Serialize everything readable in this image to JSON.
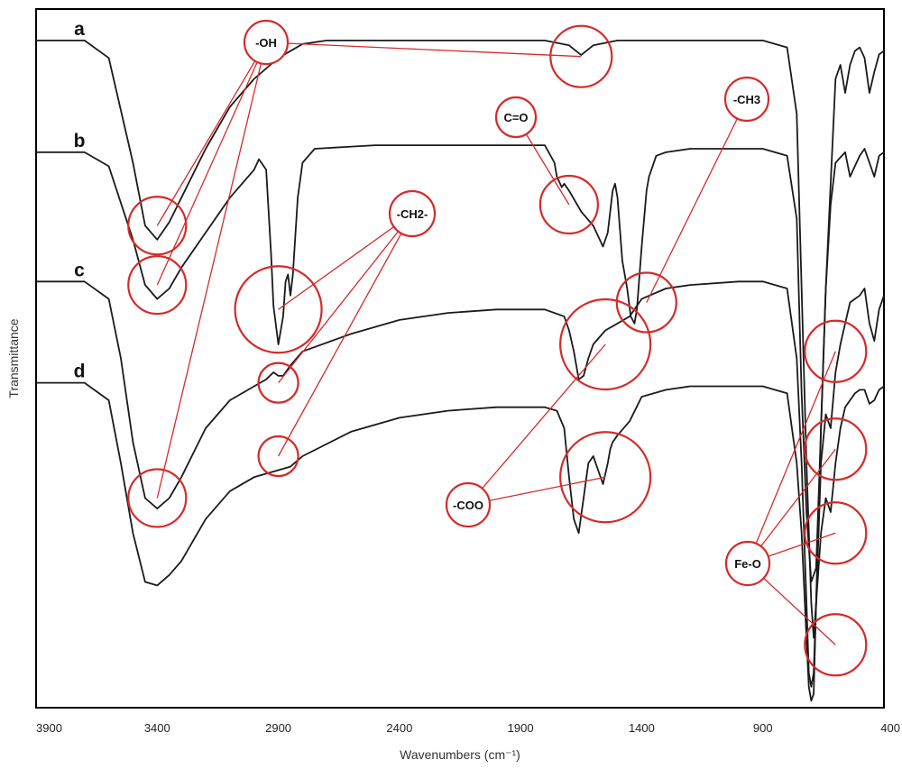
{
  "chart_data": {
    "type": "line",
    "title": "",
    "xlabel": "Wavenumbers (cm⁻¹)",
    "ylabel": "Transmittance",
    "xlim": [
      3900,
      400
    ],
    "x_reversed": true,
    "ylim": [
      0,
      100
    ],
    "x_ticks": [
      "3900",
      "3400",
      "2900",
      "2400",
      "1900",
      "1400",
      "900",
      "400"
    ],
    "grid": false,
    "line_color": "#1a1a1a",
    "annotation_color": "#d42b2b",
    "series": [
      {
        "name": "a",
        "points": [
          [
            3900,
            95.5
          ],
          [
            3700,
            95.5
          ],
          [
            3600,
            93
          ],
          [
            3500,
            78
          ],
          [
            3450,
            69
          ],
          [
            3400,
            67
          ],
          [
            3350,
            69.5
          ],
          [
            3300,
            73
          ],
          [
            3200,
            80
          ],
          [
            3100,
            86
          ],
          [
            3000,
            90
          ],
          [
            2900,
            93
          ],
          [
            2800,
            95
          ],
          [
            2700,
            95.5
          ],
          [
            2000,
            95.5
          ],
          [
            1800,
            95.5
          ],
          [
            1700,
            94.8
          ],
          [
            1650,
            93.4
          ],
          [
            1600,
            94.8
          ],
          [
            1500,
            95.5
          ],
          [
            900,
            95.5
          ],
          [
            800,
            94.5
          ],
          [
            760,
            85
          ],
          [
            740,
            60
          ],
          [
            720,
            35
          ],
          [
            700,
            15
          ],
          [
            690,
            10
          ],
          [
            680,
            15
          ],
          [
            660,
            40
          ],
          [
            640,
            60
          ],
          [
            620,
            75
          ],
          [
            600,
            90
          ],
          [
            580,
            92
          ],
          [
            560,
            88
          ],
          [
            540,
            92
          ],
          [
            520,
            94
          ],
          [
            500,
            94.5
          ],
          [
            480,
            93
          ],
          [
            460,
            88
          ],
          [
            440,
            91
          ],
          [
            420,
            93.5
          ],
          [
            400,
            94
          ]
        ]
      },
      {
        "name": "b",
        "points": [
          [
            3900,
            79.5
          ],
          [
            3700,
            79.5
          ],
          [
            3600,
            77.5
          ],
          [
            3500,
            67
          ],
          [
            3450,
            60.5
          ],
          [
            3400,
            58.5
          ],
          [
            3350,
            60
          ],
          [
            3300,
            63
          ],
          [
            3200,
            68
          ],
          [
            3100,
            73
          ],
          [
            3000,
            77
          ],
          [
            2980,
            78.5
          ],
          [
            2950,
            77
          ],
          [
            2930,
            65
          ],
          [
            2920,
            57.5
          ],
          [
            2900,
            52
          ],
          [
            2880,
            56
          ],
          [
            2870,
            61
          ],
          [
            2860,
            62
          ],
          [
            2850,
            59
          ],
          [
            2840,
            62
          ],
          [
            2820,
            73
          ],
          [
            2800,
            78
          ],
          [
            2750,
            80
          ],
          [
            2500,
            80.5
          ],
          [
            1800,
            80.5
          ],
          [
            1760,
            78
          ],
          [
            1750,
            76
          ],
          [
            1730,
            74.5
          ],
          [
            1720,
            75
          ],
          [
            1700,
            74
          ],
          [
            1650,
            71
          ],
          [
            1600,
            69
          ],
          [
            1560,
            66
          ],
          [
            1540,
            68
          ],
          [
            1520,
            74
          ],
          [
            1510,
            75
          ],
          [
            1500,
            73
          ],
          [
            1480,
            64
          ],
          [
            1460,
            60
          ],
          [
            1445,
            56
          ],
          [
            1430,
            55
          ],
          [
            1420,
            57
          ],
          [
            1400,
            66
          ],
          [
            1380,
            74
          ],
          [
            1370,
            76
          ],
          [
            1360,
            77
          ],
          [
            1340,
            79
          ],
          [
            1300,
            79.5
          ],
          [
            1200,
            80
          ],
          [
            900,
            80
          ],
          [
            800,
            79
          ],
          [
            760,
            70
          ],
          [
            740,
            45
          ],
          [
            720,
            28
          ],
          [
            700,
            18
          ],
          [
            680,
            20
          ],
          [
            660,
            40
          ],
          [
            640,
            60
          ],
          [
            620,
            72
          ],
          [
            600,
            78
          ],
          [
            560,
            79.5
          ],
          [
            540,
            76
          ],
          [
            500,
            79
          ],
          [
            480,
            80
          ],
          [
            460,
            78
          ],
          [
            440,
            76
          ],
          [
            420,
            79
          ],
          [
            400,
            79.5
          ]
        ]
      },
      {
        "name": "c",
        "points": [
          [
            3900,
            61
          ],
          [
            3700,
            61
          ],
          [
            3600,
            58.5
          ],
          [
            3550,
            50
          ],
          [
            3500,
            38
          ],
          [
            3450,
            30
          ],
          [
            3400,
            28.5
          ],
          [
            3350,
            30
          ],
          [
            3300,
            33
          ],
          [
            3200,
            40
          ],
          [
            3100,
            44
          ],
          [
            3000,
            46
          ],
          [
            2950,
            47
          ],
          [
            2920,
            48
          ],
          [
            2900,
            47.5
          ],
          [
            2880,
            47.5
          ],
          [
            2850,
            49
          ],
          [
            2800,
            51
          ],
          [
            2600,
            53.5
          ],
          [
            2400,
            55.5
          ],
          [
            2200,
            56.5
          ],
          [
            2000,
            57
          ],
          [
            1800,
            57
          ],
          [
            1720,
            56
          ],
          [
            1700,
            54
          ],
          [
            1680,
            51
          ],
          [
            1660,
            47
          ],
          [
            1640,
            47.5
          ],
          [
            1620,
            50
          ],
          [
            1600,
            52
          ],
          [
            1550,
            54
          ],
          [
            1500,
            55
          ],
          [
            1450,
            56
          ],
          [
            1400,
            58.5
          ],
          [
            1300,
            60
          ],
          [
            1200,
            60.5
          ],
          [
            1000,
            61
          ],
          [
            900,
            61
          ],
          [
            800,
            60
          ],
          [
            760,
            50
          ],
          [
            740,
            35
          ],
          [
            720,
            15
          ],
          [
            710,
            5
          ],
          [
            700,
            3
          ],
          [
            690,
            5
          ],
          [
            680,
            15
          ],
          [
            660,
            35
          ],
          [
            640,
            42
          ],
          [
            620,
            40
          ],
          [
            600,
            48
          ],
          [
            580,
            52
          ],
          [
            560,
            55
          ],
          [
            540,
            58
          ],
          [
            500,
            59
          ],
          [
            480,
            60
          ],
          [
            460,
            55
          ],
          [
            440,
            52.5
          ],
          [
            420,
            57
          ],
          [
            400,
            59
          ]
        ]
      },
      {
        "name": "d",
        "points": [
          [
            3900,
            46.5
          ],
          [
            3700,
            46.5
          ],
          [
            3600,
            44
          ],
          [
            3550,
            35
          ],
          [
            3500,
            25
          ],
          [
            3450,
            18
          ],
          [
            3400,
            17.5
          ],
          [
            3350,
            19
          ],
          [
            3300,
            21
          ],
          [
            3200,
            27
          ],
          [
            3100,
            31
          ],
          [
            3000,
            33
          ],
          [
            2900,
            34
          ],
          [
            2850,
            34.5
          ],
          [
            2800,
            36
          ],
          [
            2600,
            39.5
          ],
          [
            2400,
            41.5
          ],
          [
            2200,
            42.5
          ],
          [
            2000,
            43
          ],
          [
            1800,
            43
          ],
          [
            1750,
            42.5
          ],
          [
            1720,
            40
          ],
          [
            1700,
            33
          ],
          [
            1680,
            27
          ],
          [
            1660,
            25
          ],
          [
            1640,
            30
          ],
          [
            1620,
            35
          ],
          [
            1600,
            36
          ],
          [
            1580,
            34
          ],
          [
            1560,
            32
          ],
          [
            1540,
            35
          ],
          [
            1530,
            37
          ],
          [
            1520,
            38
          ],
          [
            1500,
            39
          ],
          [
            1450,
            41
          ],
          [
            1400,
            44.5
          ],
          [
            1300,
            45.5
          ],
          [
            1200,
            46
          ],
          [
            1000,
            46
          ],
          [
            900,
            46
          ],
          [
            800,
            45
          ],
          [
            760,
            35
          ],
          [
            740,
            25
          ],
          [
            720,
            10
          ],
          [
            710,
            3
          ],
          [
            700,
            1
          ],
          [
            690,
            2
          ],
          [
            680,
            15
          ],
          [
            660,
            25
          ],
          [
            640,
            30
          ],
          [
            620,
            28
          ],
          [
            600,
            35
          ],
          [
            580,
            40
          ],
          [
            560,
            43
          ],
          [
            540,
            44
          ],
          [
            520,
            45
          ],
          [
            500,
            45.5
          ],
          [
            480,
            45.5
          ],
          [
            460,
            43.5
          ],
          [
            440,
            44
          ],
          [
            420,
            45.5
          ],
          [
            400,
            46
          ]
        ]
      }
    ],
    "annotations": [
      {
        "label": "-OH",
        "targets": [
          [
            3400,
            69
          ],
          [
            3400,
            60.5
          ],
          [
            3400,
            30
          ],
          [
            1650,
            93.2
          ]
        ]
      },
      {
        "label": "C=O",
        "targets": [
          [
            1700,
            72
          ]
        ]
      },
      {
        "label": "-CH3",
        "targets": [
          [
            1380,
            58
          ]
        ]
      },
      {
        "label": "-CH2-",
        "targets": [
          [
            2900,
            57
          ],
          [
            2900,
            46.5
          ],
          [
            2900,
            36
          ]
        ]
      },
      {
        "label": "-COO",
        "targets": [
          [
            1550,
            52
          ],
          [
            1550,
            33
          ]
        ]
      },
      {
        "label": "Fe-O",
        "targets": [
          [
            600,
            51
          ],
          [
            600,
            37
          ],
          [
            600,
            25
          ],
          [
            600,
            9
          ]
        ]
      }
    ]
  }
}
